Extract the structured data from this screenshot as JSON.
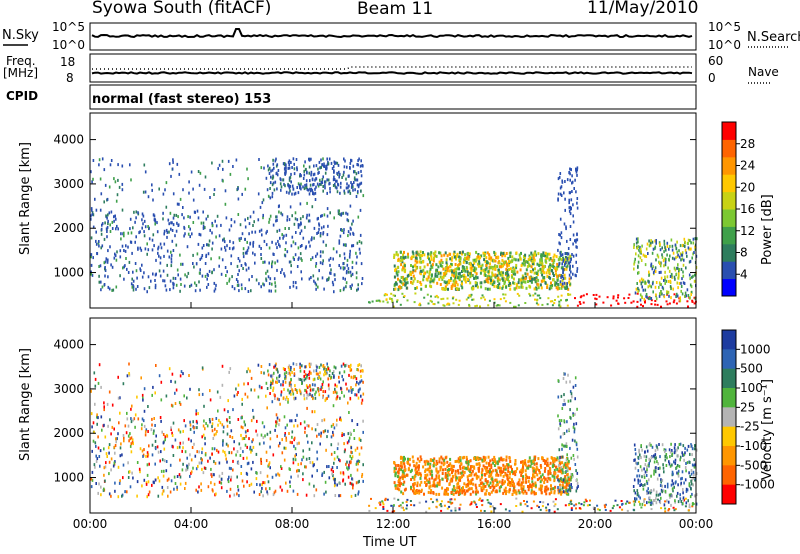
{
  "header": {
    "station": "Syowa South (fitACF)",
    "beam": "Beam 11",
    "date": "11/May/2010"
  },
  "panels": {
    "noise": {
      "left_label": "N.Sky",
      "right_label": "N.Search",
      "left_ticks": [
        "10^5",
        "10^0"
      ],
      "right_ticks": [
        "10^5",
        "10^0"
      ]
    },
    "freq": {
      "left_label_1": "Freq.",
      "left_label_2": "[MHz]",
      "right_label": "Nave",
      "left_ticks": [
        "18",
        "8"
      ],
      "right_ticks": [
        "60",
        "0"
      ]
    },
    "cpid": {
      "label": "CPID",
      "text": "normal (fast stereo) 153"
    }
  },
  "chart_data": [
    {
      "type": "heatmap",
      "name": "power",
      "ylabel": "Slant Range [km]",
      "xlabel": "",
      "yticks": [
        "1000",
        "2000",
        "3000",
        "4000"
      ],
      "ylim": [
        200,
        4600
      ],
      "xlim_hours": [
        0,
        24
      ],
      "colorbar": {
        "label": "Power [dB]",
        "ticks": [
          "4",
          "8",
          "12",
          "16",
          "20",
          "24",
          "28"
        ],
        "range": [
          0,
          32
        ],
        "colors": [
          "#0000ff",
          "#2a4fb0",
          "#2e7d5e",
          "#3fa04a",
          "#7cc832",
          "#c8d214",
          "#ffc800",
          "#ff9600",
          "#ff6400",
          "#ff0000"
        ]
      }
    },
    {
      "type": "heatmap",
      "name": "velocity",
      "ylabel": "Slant Range [km]",
      "xlabel": "Time UT",
      "xticks": [
        "00:00",
        "04:00",
        "08:00",
        "12:00",
        "16:00",
        "20:00",
        "00:00"
      ],
      "yticks": [
        "1000",
        "2000",
        "3000",
        "4000"
      ],
      "ylim": [
        200,
        4600
      ],
      "xlim_hours": [
        0,
        24
      ],
      "colorbar": {
        "label": "Velocity [m s⁻¹]",
        "ticks": [
          "1000",
          "500",
          "100",
          "25",
          "-25",
          "-100",
          "-500",
          "-1000"
        ],
        "colors": [
          "#1e3ca0",
          "#2e64b4",
          "#2e7d5e",
          "#50b43c",
          "#b4b4b4",
          "#ffc800",
          "#ff9600",
          "#ff6400",
          "#ff0000"
        ]
      }
    }
  ]
}
